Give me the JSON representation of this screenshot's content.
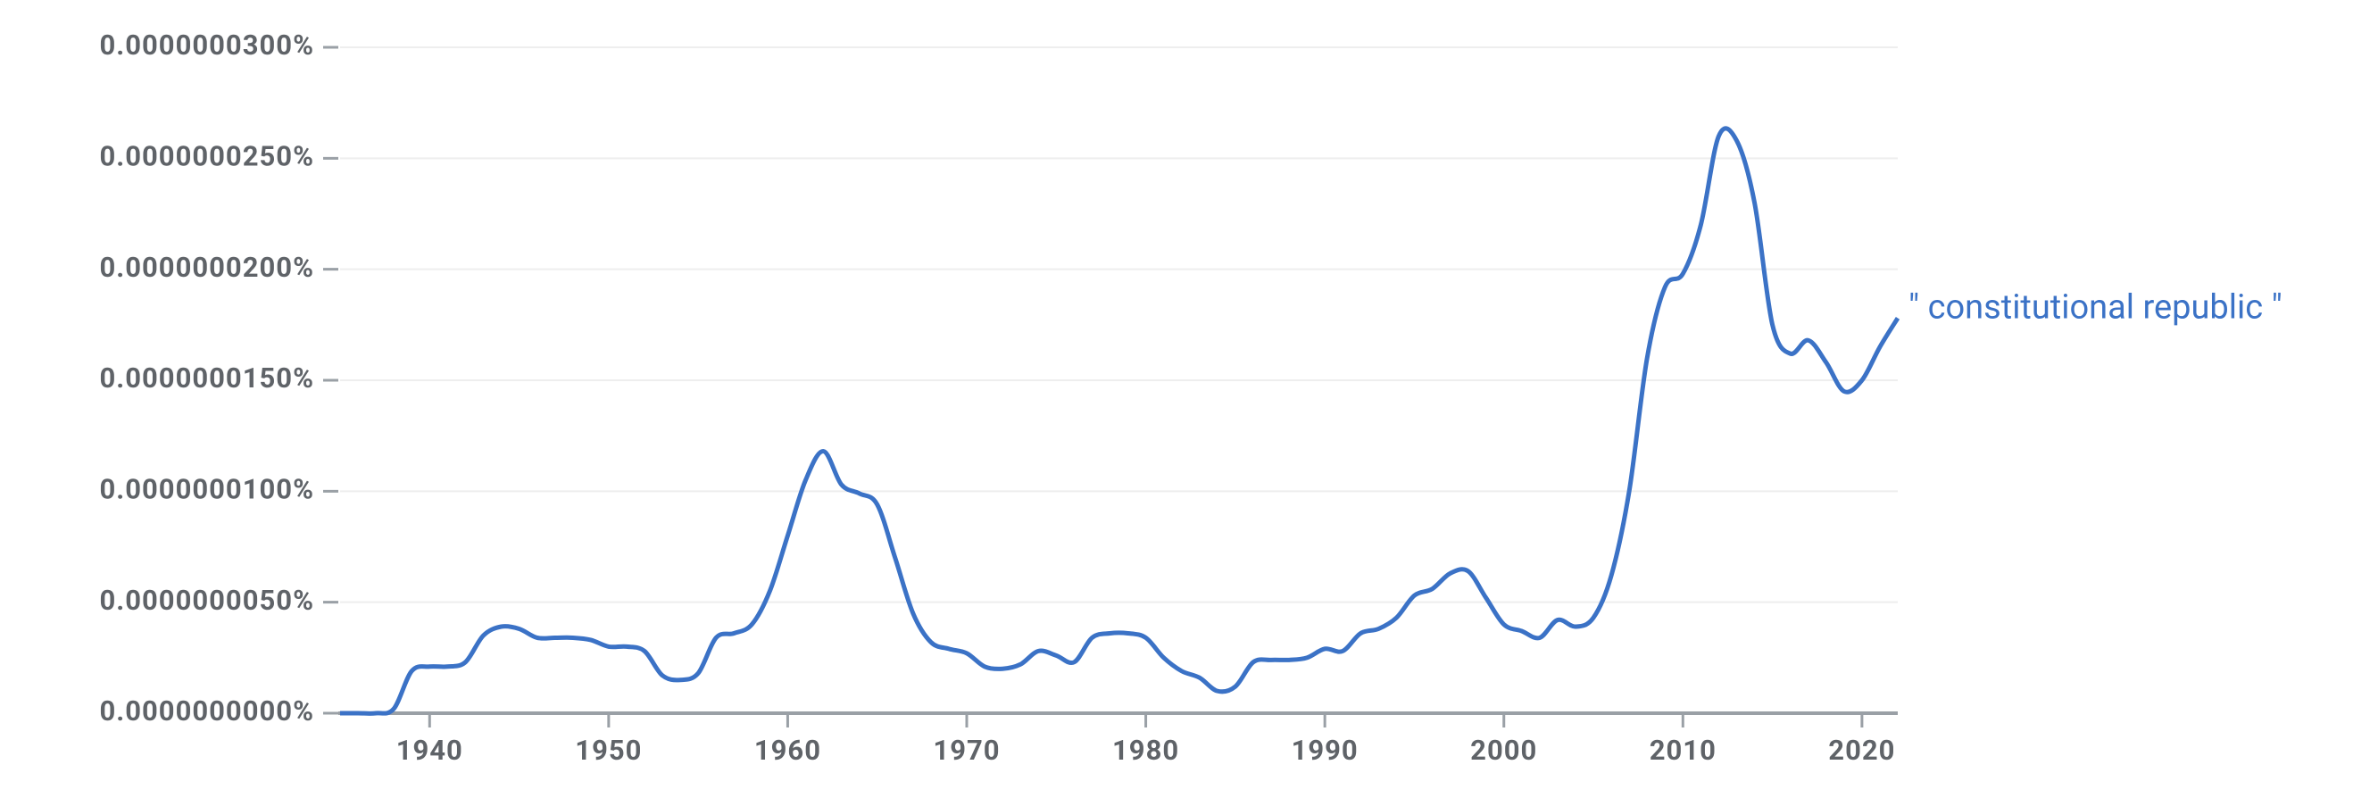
{
  "chart_data": {
    "type": "line",
    "x": [
      1935,
      1936,
      1937,
      1938,
      1939,
      1940,
      1941,
      1942,
      1943,
      1944,
      1945,
      1946,
      1947,
      1948,
      1949,
      1950,
      1951,
      1952,
      1953,
      1954,
      1955,
      1956,
      1957,
      1958,
      1959,
      1960,
      1961,
      1962,
      1963,
      1964,
      1965,
      1966,
      1967,
      1968,
      1969,
      1970,
      1971,
      1972,
      1973,
      1974,
      1975,
      1976,
      1977,
      1978,
      1979,
      1980,
      1981,
      1982,
      1983,
      1984,
      1985,
      1986,
      1987,
      1988,
      1989,
      1990,
      1991,
      1992,
      1993,
      1994,
      1995,
      1996,
      1997,
      1998,
      1999,
      2000,
      2001,
      2002,
      2003,
      2004,
      2005,
      2006,
      2007,
      2008,
      2009,
      2010,
      2011,
      2012,
      2013,
      2014,
      2015,
      2016,
      2017,
      2018,
      2019,
      2020,
      2021,
      2022
    ],
    "series": [
      {
        "name": "\" constitutional republic \"",
        "color": "#3b72c6",
        "values": [
          0,
          0,
          0,
          2e-10,
          1.9e-09,
          2.1e-09,
          2.1e-09,
          2.3e-09,
          3.5e-09,
          3.9e-09,
          3.8e-09,
          3.4e-09,
          3.4e-09,
          3.4e-09,
          3.3e-09,
          3e-09,
          3e-09,
          2.8e-09,
          1.7e-09,
          1.5e-09,
          1.8e-09,
          3.4e-09,
          3.6e-09,
          4e-09,
          5.5e-09,
          8e-09,
          1.05e-08,
          1.18e-08,
          1.03e-08,
          9.9e-09,
          9.4e-09,
          7e-09,
          4.5e-09,
          3.2e-09,
          2.9e-09,
          2.7e-09,
          2.1e-09,
          2e-09,
          2.2e-09,
          2.8e-09,
          2.6e-09,
          2.3e-09,
          3.4e-09,
          3.6e-09,
          3.6e-09,
          3.4e-09,
          2.5e-09,
          1.9e-09,
          1.6e-09,
          1e-09,
          1.2e-09,
          2.3e-09,
          2.4e-09,
          2.4e-09,
          2.5e-09,
          2.9e-09,
          2.8e-09,
          3.6e-09,
          3.8e-09,
          4.3e-09,
          5.3e-09,
          5.6e-09,
          6.3e-09,
          6.4e-09,
          5.2e-09,
          4e-09,
          3.7e-09,
          3.4e-09,
          4.2e-09,
          3.9e-09,
          4.3e-09,
          6.2e-09,
          1e-08,
          1.6e-08,
          1.92e-08,
          1.98e-08,
          2.2e-08,
          2.6e-08,
          2.58e-08,
          2.3e-08,
          1.75e-08,
          1.62e-08,
          1.68e-08,
          1.58e-08,
          1.45e-08,
          1.5e-08,
          1.65e-08,
          1.78e-08
        ]
      }
    ],
    "xlim": [
      1935,
      2022
    ],
    "xticks": [
      1940,
      1950,
      1960,
      1970,
      1980,
      1990,
      2000,
      2010,
      2020
    ],
    "ylim": [
      0,
      3e-08
    ],
    "yticks": [
      {
        "value": 0,
        "label": "0.0000000000%"
      },
      {
        "value": 5e-09,
        "label": "0.0000000050%"
      },
      {
        "value": 1e-08,
        "label": "0.0000000100%"
      },
      {
        "value": 1.5e-08,
        "label": "0.0000000150%"
      },
      {
        "value": 2e-08,
        "label": "0.0000000200%"
      },
      {
        "value": 2.5e-08,
        "label": "0.0000000250%"
      },
      {
        "value": 3e-08,
        "label": "0.0000000300%"
      }
    ],
    "grid": true
  }
}
